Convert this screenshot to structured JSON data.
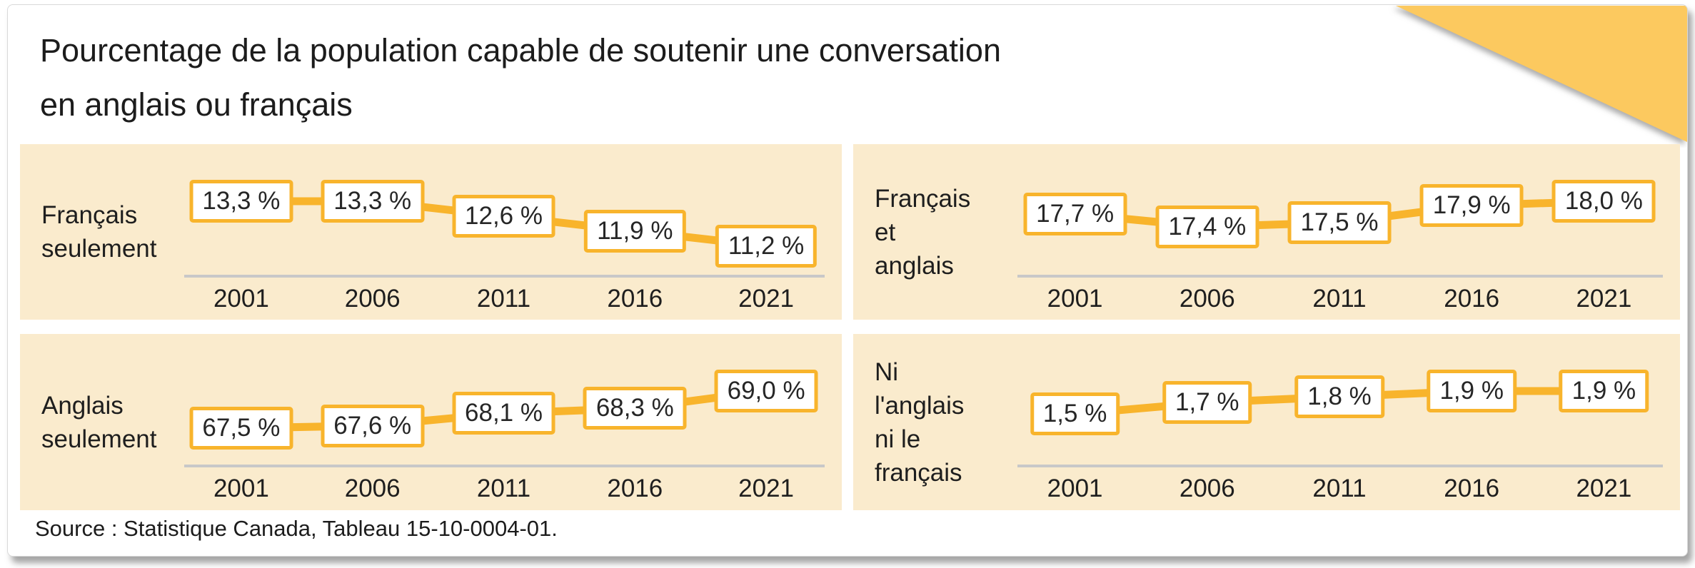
{
  "title": "Pourcentage de la population capable de soutenir une conversation\nen anglais ou français",
  "source": "Source : Statistique Canada, Tableau 15-10-0004-01.",
  "colors": {
    "accent_yellow": "#F8B42C",
    "triangle_yellow": "#FCC95F",
    "panel_bg": "#FAEBCD",
    "baseline_gray": "#C8C8C8",
    "text": "#222222"
  },
  "chart_data": [
    {
      "type": "line",
      "series_label": "Français\nseulement",
      "categories": [
        "2001",
        "2006",
        "2011",
        "2016",
        "2021"
      ],
      "values": [
        13.3,
        13.3,
        12.6,
        11.9,
        11.2
      ],
      "value_labels": [
        "13,3 %",
        "13,3 %",
        "12,6 %",
        "11,9 %",
        "11,2 %"
      ],
      "xlabel": "",
      "ylabel": "",
      "legend": "none",
      "grid": "off",
      "ylim": [
        11.2,
        13.3
      ]
    },
    {
      "type": "line",
      "series_label": "Français\net\nanglais",
      "categories": [
        "2001",
        "2006",
        "2011",
        "2016",
        "2021"
      ],
      "values": [
        17.7,
        17.4,
        17.5,
        17.9,
        18.0
      ],
      "value_labels": [
        "17,7 %",
        "17,4 %",
        "17,5 %",
        "17,9 %",
        "18,0 %"
      ],
      "xlabel": "",
      "ylabel": "",
      "legend": "none",
      "grid": "off",
      "ylim": [
        17.4,
        18.0
      ]
    },
    {
      "type": "line",
      "series_label": "Anglais\nseulement",
      "categories": [
        "2001",
        "2006",
        "2011",
        "2016",
        "2021"
      ],
      "values": [
        67.5,
        67.6,
        68.1,
        68.3,
        69.0
      ],
      "value_labels": [
        "67,5 %",
        "67,6 %",
        "68,1 %",
        "68,3 %",
        "69,0 %"
      ],
      "xlabel": "",
      "ylabel": "",
      "legend": "none",
      "grid": "off",
      "ylim": [
        67.5,
        69.0
      ]
    },
    {
      "type": "line",
      "series_label": "Ni\nl'anglais\nni le\nfrançais",
      "categories": [
        "2001",
        "2006",
        "2011",
        "2016",
        "2021"
      ],
      "values": [
        1.5,
        1.7,
        1.8,
        1.9,
        1.9
      ],
      "value_labels": [
        "1,5 %",
        "1,7 %",
        "1,8 %",
        "1,9 %",
        "1,9 %"
      ],
      "xlabel": "",
      "ylabel": "",
      "legend": "none",
      "grid": "off",
      "ylim": [
        1.5,
        1.9
      ]
    }
  ]
}
